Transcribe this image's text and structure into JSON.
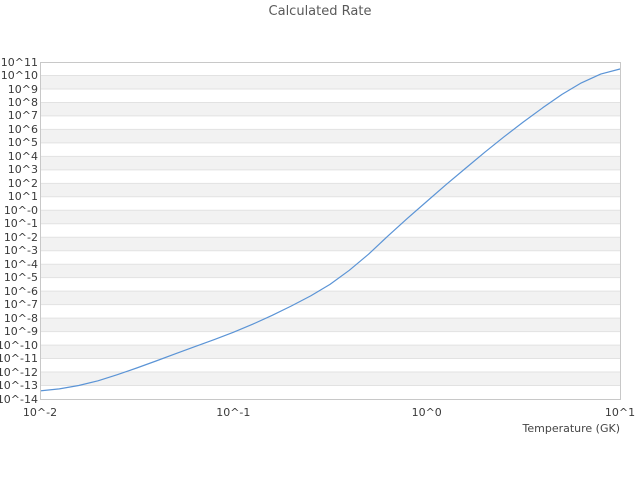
{
  "title": "Calculated Rate",
  "x_axis": {
    "title": "Temperature (GK)",
    "tick_labels": [
      "10^-2",
      "10^-1",
      "10^0",
      "10^1"
    ],
    "tick_log10": [
      -2,
      -1,
      0,
      1
    ]
  },
  "y_axis": {
    "tick_labels": [
      "10^11",
      "10^10",
      "10^9",
      "10^8",
      "10^7",
      "10^6",
      "10^5",
      "10^4",
      "10^3",
      "10^2",
      "10^1",
      "10^-0",
      "10^-1",
      "10^-2",
      "10^-3",
      "10^-4",
      "10^-5",
      "10^-6",
      "10^-7",
      "10^-8",
      "10^-9",
      "10^-10",
      "10^-11",
      "10^-12",
      "10^-13",
      "10^-14"
    ],
    "tick_log10": [
      11,
      10,
      9,
      8,
      7,
      6,
      5,
      4,
      3,
      2,
      1,
      0,
      -1,
      -2,
      -3,
      -4,
      -5,
      -6,
      -7,
      -8,
      -9,
      -10,
      -11,
      -12,
      -13,
      -14
    ]
  },
  "colors": {
    "curve": "#5b94d6",
    "stripe_gray": "#f2f2f2",
    "gridline": "#e2e2e2",
    "plot_border": "#c8c8c8",
    "title_text": "#5a5a5a",
    "tick_text": "#3a3a3a"
  },
  "chart_data": {
    "type": "line",
    "title": "Calculated Rate",
    "xlabel": "Temperature (GK)",
    "ylabel": "",
    "x_scale": "log10",
    "y_scale": "log10",
    "xlim_log10": [
      -2,
      1
    ],
    "ylim_log10": [
      -14,
      11
    ],
    "grid": "horizontal-stripes",
    "legend": "none",
    "series": [
      {
        "name": "calculated-rate",
        "color": "#5b94d6",
        "log10_T": [
          -2.0,
          -1.9,
          -1.8,
          -1.7,
          -1.6,
          -1.5,
          -1.4,
          -1.3,
          -1.2,
          -1.1,
          -1.0,
          -0.9,
          -0.8,
          -0.7,
          -0.6,
          -0.5,
          -0.4,
          -0.3,
          -0.2,
          -0.1,
          0.0,
          0.1,
          0.2,
          0.3,
          0.4,
          0.5,
          0.6,
          0.7,
          0.8,
          0.9,
          1.0
        ],
        "log10_rate": [
          -13.4,
          -13.25,
          -13.0,
          -12.65,
          -12.2,
          -11.7,
          -11.18,
          -10.65,
          -10.12,
          -9.6,
          -9.05,
          -8.45,
          -7.8,
          -7.1,
          -6.35,
          -5.5,
          -4.45,
          -3.25,
          -1.9,
          -0.6,
          0.65,
          1.9,
          3.1,
          4.3,
          5.45,
          6.55,
          7.6,
          8.6,
          9.45,
          10.1,
          10.48
        ]
      }
    ]
  }
}
